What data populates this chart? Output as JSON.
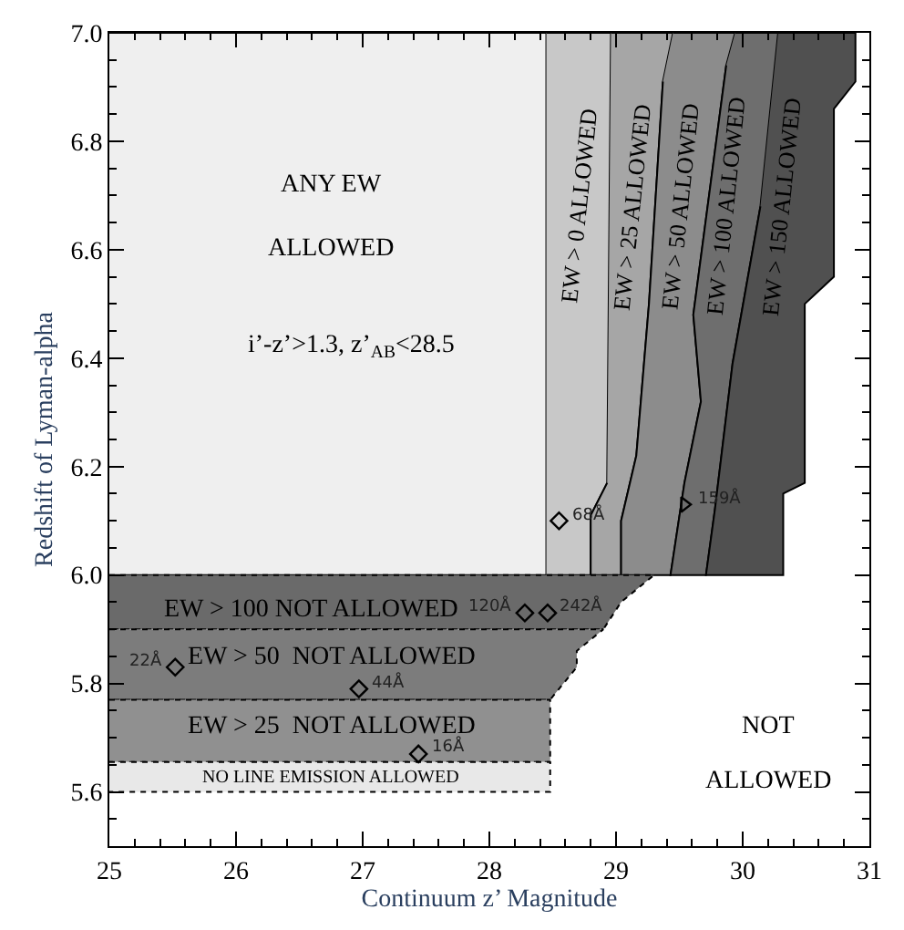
{
  "chart_data": {
    "type": "area",
    "xlabel": "Continuum z’ Magnitude",
    "ylabel": "Redshift of Lyman-alpha",
    "xlim": [
      25,
      31
    ],
    "ylim": [
      5.5,
      7.0
    ],
    "xticks": [
      25,
      26,
      27,
      28,
      29,
      30,
      31
    ],
    "yticks": [
      5.6,
      5.8,
      {
        "value": 6.0,
        "label": "6.0"
      },
      6.2,
      6.4,
      6.6,
      6.8,
      {
        "value": 7.0,
        "label": "7.0"
      }
    ],
    "series": [
      {
        "color": "#efefef",
        "line_style": "solid",
        "x": [
          25,
          28.45,
          28.45,
          25
        ],
        "values": [
          6.0,
          6.0,
          7.0,
          7.0
        ]
      },
      {
        "color": "#c8c8c8",
        "line_style": "solid",
        "x": [
          28.45,
          28.96,
          28.93,
          28.8,
          28.8,
          28.45
        ],
        "values": [
          7.0,
          7.0,
          6.17,
          6.11,
          6.0,
          6.0
        ]
      },
      {
        "color": "#a6a6a6",
        "line_style": "solid",
        "x": [
          28.96,
          29.45,
          29.37,
          29.26,
          29.16,
          29.04,
          29.04,
          28.8,
          28.8,
          28.93
        ],
        "values": [
          7.0,
          7.0,
          6.91,
          6.5,
          6.22,
          6.1,
          6.0,
          6.0,
          6.11,
          6.17
        ]
      },
      {
        "color": "#8c8c8c",
        "line_style": "solid",
        "x": [
          29.45,
          29.94,
          29.87,
          29.61,
          29.67,
          29.54,
          29.43,
          29.04,
          29.04,
          29.16,
          29.26,
          29.37
        ],
        "values": [
          7.0,
          7.0,
          6.94,
          6.48,
          6.32,
          6.17,
          6.0,
          6.0,
          6.1,
          6.22,
          6.5,
          6.91
        ]
      },
      {
        "color": "#6e6e6e",
        "line_style": "solid",
        "x": [
          29.94,
          30.28,
          30.14,
          29.92,
          29.78,
          29.71,
          29.43,
          29.54,
          29.67,
          29.61,
          29.87
        ],
        "values": [
          7.0,
          7.0,
          6.68,
          6.39,
          6.12,
          6.0,
          6.0,
          6.17,
          6.32,
          6.48,
          6.94
        ]
      },
      {
        "color": "#505050",
        "line_style": "solid",
        "x": [
          30.28,
          30.89,
          30.89,
          30.72,
          30.72,
          30.49,
          30.49,
          30.32,
          30.32,
          29.71,
          29.78,
          29.92,
          30.14
        ],
        "values": [
          7.0,
          7.0,
          6.91,
          6.86,
          6.55,
          6.5,
          6.17,
          6.15,
          6.0,
          6.0,
          6.12,
          6.39,
          6.68
        ]
      },
      {
        "color": "#6a6a6a",
        "line_style": "dotted",
        "x": [
          25,
          29.3,
          29.04,
          28.9,
          25
        ],
        "values": [
          6.0,
          6.0,
          5.95,
          5.9,
          5.9
        ]
      },
      {
        "color": "#7c7c7c",
        "line_style": "dotted",
        "x": [
          25,
          28.9,
          28.69,
          28.69,
          28.48,
          25
        ],
        "values": [
          5.9,
          5.9,
          5.86,
          5.83,
          5.77,
          5.77
        ]
      },
      {
        "color": "#909090",
        "line_style": "dotted",
        "x": [
          25,
          28.48,
          28.48,
          25
        ],
        "values": [
          5.77,
          5.77,
          5.655,
          5.655
        ]
      },
      {
        "color": "#e8e8e8",
        "line_style": "dotted",
        "x": [
          25,
          28.48,
          28.48,
          25
        ],
        "values": [
          5.655,
          5.655,
          5.6,
          5.6
        ]
      },
      {
        "type": "scatter",
        "color": "#000000",
        "marker": "diamond",
        "x": [
          28.55,
          28.28,
          28.46,
          25.52,
          26.97,
          27.44
        ],
        "values": [
          6.1,
          5.93,
          5.93,
          5.83,
          5.79,
          5.67
        ]
      },
      {
        "type": "scatter",
        "color": "#000000",
        "marker": "triangle",
        "x": [
          29.54
        ],
        "values": [
          6.13
        ]
      }
    ],
    "annotations": [
      "ANY EW",
      "ALLOWED",
      "i’-z’>1.3, z’$_{AB}$<28.5",
      "EW > 0 ALLOWED",
      "EW > 25 ALLOWED",
      "EW > 50 ALLOWED",
      "EW > 100 ALLOWED",
      "EW > 150 ALLOWED",
      "EW > 100 NOT ALLOWED",
      "EW > 50  NOT ALLOWED",
      "EW > 25  NOT ALLOWED",
      "NO LINE EMISSION ALLOWED",
      "NOT",
      "ALLOWED",
      {
        "text": "68Å",
        "x": 28.55,
        "y": 6.1
      },
      {
        "text": "120Å",
        "x": 28.28,
        "y": 5.93
      },
      {
        "text": "242Å",
        "x": 28.46,
        "y": 5.93
      },
      {
        "text": "22Å",
        "x": 25.52,
        "y": 5.83
      },
      {
        "text": "44Å",
        "x": 26.97,
        "y": 5.79
      },
      {
        "text": "16Å",
        "x": 27.44,
        "y": 5.67
      },
      {
        "text": "159Å",
        "x": 29.54,
        "y": 6.13
      }
    ]
  }
}
